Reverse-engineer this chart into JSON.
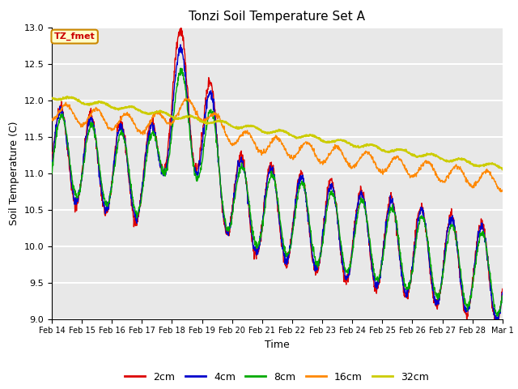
{
  "title": "Tonzi Soil Temperature Set A",
  "xlabel": "Time",
  "ylabel": "Soil Temperature (C)",
  "ylim": [
    9.0,
    13.0
  ],
  "yticks": [
    9.0,
    9.5,
    10.0,
    10.5,
    11.0,
    11.5,
    12.0,
    12.5,
    13.0
  ],
  "colors": {
    "2cm": "#dd0000",
    "4cm": "#0000cc",
    "8cm": "#00aa00",
    "16cm": "#ff8800",
    "32cm": "#cccc00"
  },
  "annotation_text": "TZ_fmet",
  "annotation_bg": "#ffffcc",
  "annotation_border": "#cc8800",
  "bg_color": "#e8e8e8",
  "grid_color": "white",
  "xtick_labels": [
    "Feb 14",
    "Feb 15",
    "Feb 16",
    "Feb 17",
    "Feb 18",
    "Feb 19",
    "Feb 20",
    "Feb 21",
    "Feb 22",
    "Feb 23",
    "Feb 24",
    "Feb 25",
    "Feb 26",
    "Feb 27",
    "Feb 28",
    "Mar 1"
  ],
  "n_days": 15,
  "figsize": [
    6.4,
    4.8
  ],
  "dpi": 100
}
